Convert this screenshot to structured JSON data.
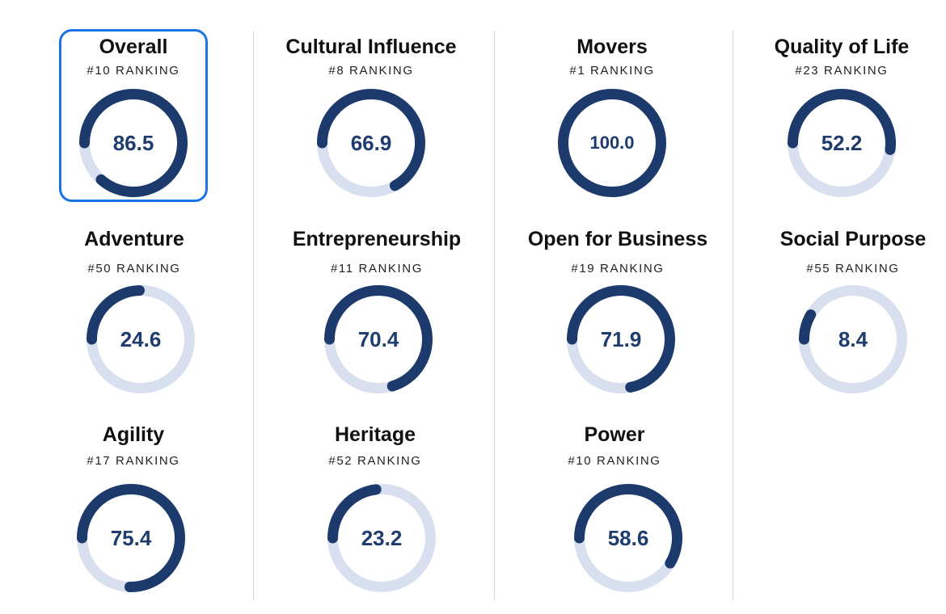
{
  "metrics": [
    {
      "title": "Overall",
      "rank": "#10 RANKING",
      "value": "86.5",
      "score": 86.5,
      "selected": true
    },
    {
      "title": "Cultural Influence",
      "rank": "#8 RANKING",
      "value": "66.9",
      "score": 66.9,
      "selected": false
    },
    {
      "title": "Movers",
      "rank": "#1 RANKING",
      "value": "100.0",
      "score": 100.0,
      "selected": false
    },
    {
      "title": "Quality of Life",
      "rank": "#23 RANKING",
      "value": "52.2",
      "score": 52.2,
      "selected": false
    },
    {
      "title": "Adventure",
      "rank": "#50 RANKING",
      "value": "24.6",
      "score": 24.6,
      "selected": false
    },
    {
      "title": "Entrepreneurship",
      "rank": "#11 RANKING",
      "value": "70.4",
      "score": 70.4,
      "selected": false
    },
    {
      "title": "Open for Business",
      "rank": "#19 RANKING",
      "value": "71.9",
      "score": 71.9,
      "selected": false
    },
    {
      "title": "Social Purpose",
      "rank": "#55 RANKING",
      "value": "8.4",
      "score": 8.4,
      "selected": false
    },
    {
      "title": "Agility",
      "rank": "#17 RANKING",
      "value": "75.4",
      "score": 75.4,
      "selected": false
    },
    {
      "title": "Heritage",
      "rank": "#52 RANKING",
      "value": "23.2",
      "score": 23.2,
      "selected": false
    },
    {
      "title": "Power",
      "rank": "#10 RANKING",
      "value": "58.6",
      "score": 58.6,
      "selected": false
    }
  ],
  "colors": {
    "ring_fill": "#1d3a6c",
    "ring_track": "#d8dfef",
    "selected_border": "#1a73e8",
    "value_text": "#1f3c6e"
  }
}
